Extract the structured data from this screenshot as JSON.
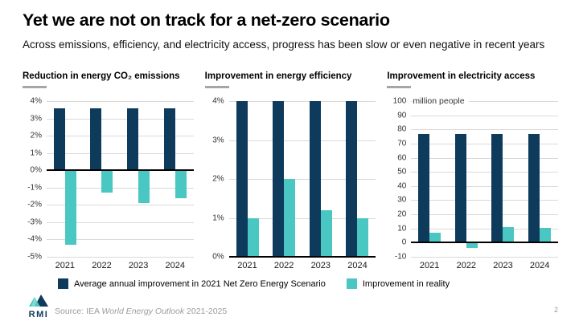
{
  "slide": {
    "title": "Yet we are not on track for a net-zero scenario",
    "subtitle": "Across emissions, efficiency, and electricity access, progress has been slow or even negative in recent years",
    "page_number": "2"
  },
  "colors": {
    "scenario": "#0e3a5c",
    "reality": "#4ac7c3",
    "gridline": "#d9d9d9",
    "zero_line": "#000000",
    "underline": "#a6a6a6"
  },
  "legend": {
    "items": [
      {
        "label": "Average annual improvement in 2021 Net Zero Energy Scenario",
        "color_key": "scenario"
      },
      {
        "label": "Improvement in reality",
        "color_key": "reality"
      }
    ]
  },
  "footer": {
    "source_prefix": "Source: IEA ",
    "source_title": "World Energy Outlook",
    "source_suffix": " 2021-2025",
    "logo_text": "RMI"
  },
  "chart_data": [
    {
      "type": "bar",
      "title": "Reduction in energy CO₂ emissions",
      "categories": [
        "2021",
        "2022",
        "2023",
        "2024"
      ],
      "series": [
        {
          "name": "Average annual improvement in 2021 Net Zero Energy Scenario",
          "color_key": "scenario",
          "values": [
            3.6,
            3.6,
            3.6,
            3.6
          ]
        },
        {
          "name": "Improvement in reality",
          "color_key": "reality",
          "values": [
            -4.3,
            -1.3,
            -1.9,
            -1.6
          ]
        }
      ],
      "ylim": [
        -5,
        4
      ],
      "ytick_step": 1,
      "ytick_suffix": "%",
      "unit_label": "",
      "grid": true,
      "legend_position": "shared-bottom"
    },
    {
      "type": "bar",
      "title": "Improvement in energy efficiency",
      "categories": [
        "2021",
        "2022",
        "2023",
        "2024"
      ],
      "series": [
        {
          "name": "Average annual improvement in 2021 Net Zero Energy Scenario",
          "color_key": "scenario",
          "values": [
            4,
            4,
            4,
            4
          ]
        },
        {
          "name": "Improvement in reality",
          "color_key": "reality",
          "values": [
            1,
            2,
            1.2,
            1
          ]
        }
      ],
      "ylim": [
        0,
        4
      ],
      "ytick_step": 1,
      "ytick_suffix": "%",
      "unit_label": "",
      "grid": true,
      "legend_position": "shared-bottom"
    },
    {
      "type": "bar",
      "title": "Improvement in electricity access",
      "categories": [
        "2021",
        "2022",
        "2023",
        "2024"
      ],
      "series": [
        {
          "name": "Average annual improvement in 2021 Net Zero Energy Scenario",
          "color_key": "scenario",
          "values": [
            77,
            77,
            77,
            77
          ]
        },
        {
          "name": "Improvement in reality",
          "color_key": "reality",
          "values": [
            7,
            -4,
            11,
            10.5
          ]
        }
      ],
      "ylim": [
        -10,
        100
      ],
      "ytick_step": 10,
      "ytick_suffix": "",
      "unit_label": "million people",
      "grid": true,
      "legend_position": "shared-bottom"
    }
  ]
}
